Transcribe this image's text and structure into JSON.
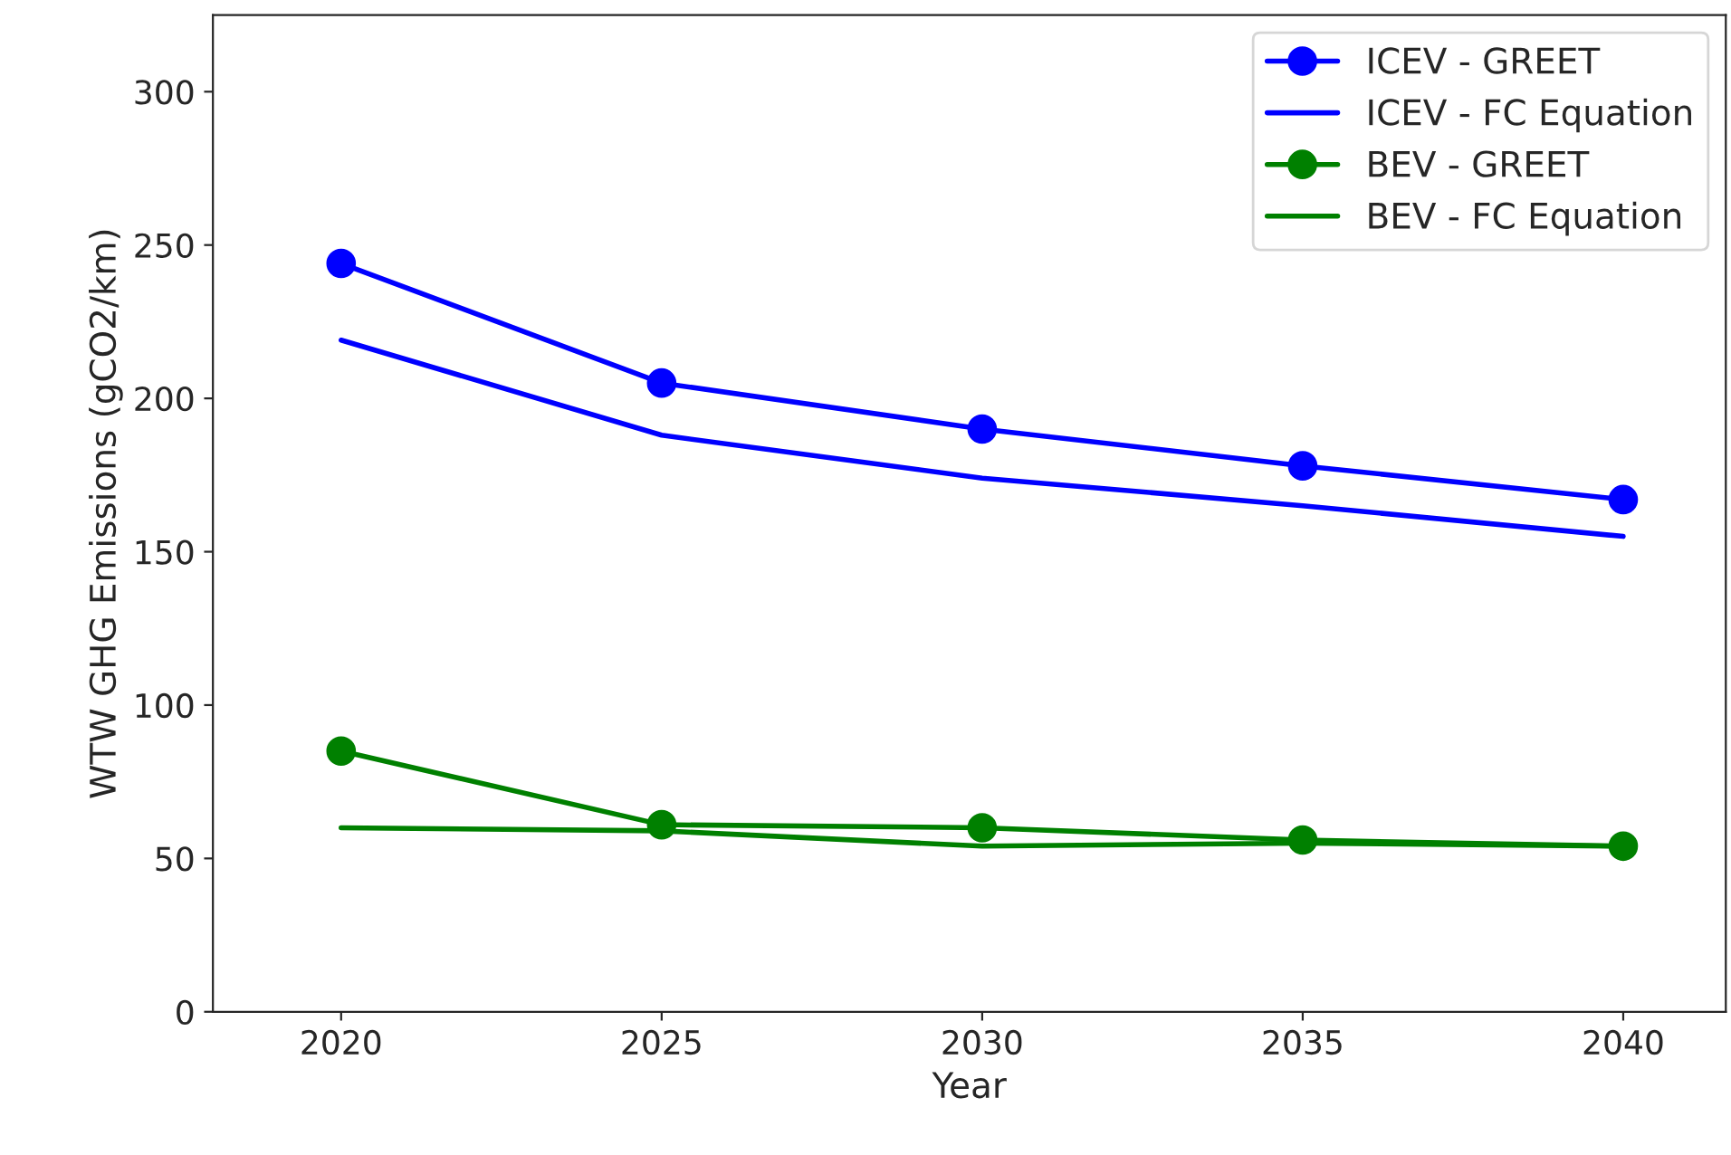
{
  "chart_data": {
    "type": "line",
    "xlabel": "Year",
    "ylabel": "WTW GHG Emissions (gCO2/km)",
    "x": [
      2020,
      2025,
      2030,
      2035,
      2040
    ],
    "series": [
      {
        "name": "ICEV - GREET",
        "color": "#0000ff",
        "marker": "circle",
        "values": [
          244,
          205,
          190,
          178,
          167
        ]
      },
      {
        "name": "ICEV - FC Equation",
        "color": "#0000ff",
        "marker": "none",
        "values": [
          219,
          188,
          174,
          165,
          155
        ]
      },
      {
        "name": "BEV - GREET",
        "color": "#008000",
        "marker": "circle",
        "values": [
          85,
          61,
          60,
          56,
          54
        ]
      },
      {
        "name": "BEV - FC Equation",
        "color": "#008000",
        "marker": "none",
        "values": [
          60,
          59,
          54,
          55,
          54
        ]
      }
    ],
    "xlim": [
      2018,
      2041.6
    ],
    "xticks": [
      2020,
      2025,
      2030,
      2035,
      2040
    ],
    "ylim": [
      0,
      325
    ],
    "yticks": [
      0,
      50,
      100,
      150,
      200,
      250,
      300
    ],
    "grid": false,
    "legend": "top right"
  }
}
